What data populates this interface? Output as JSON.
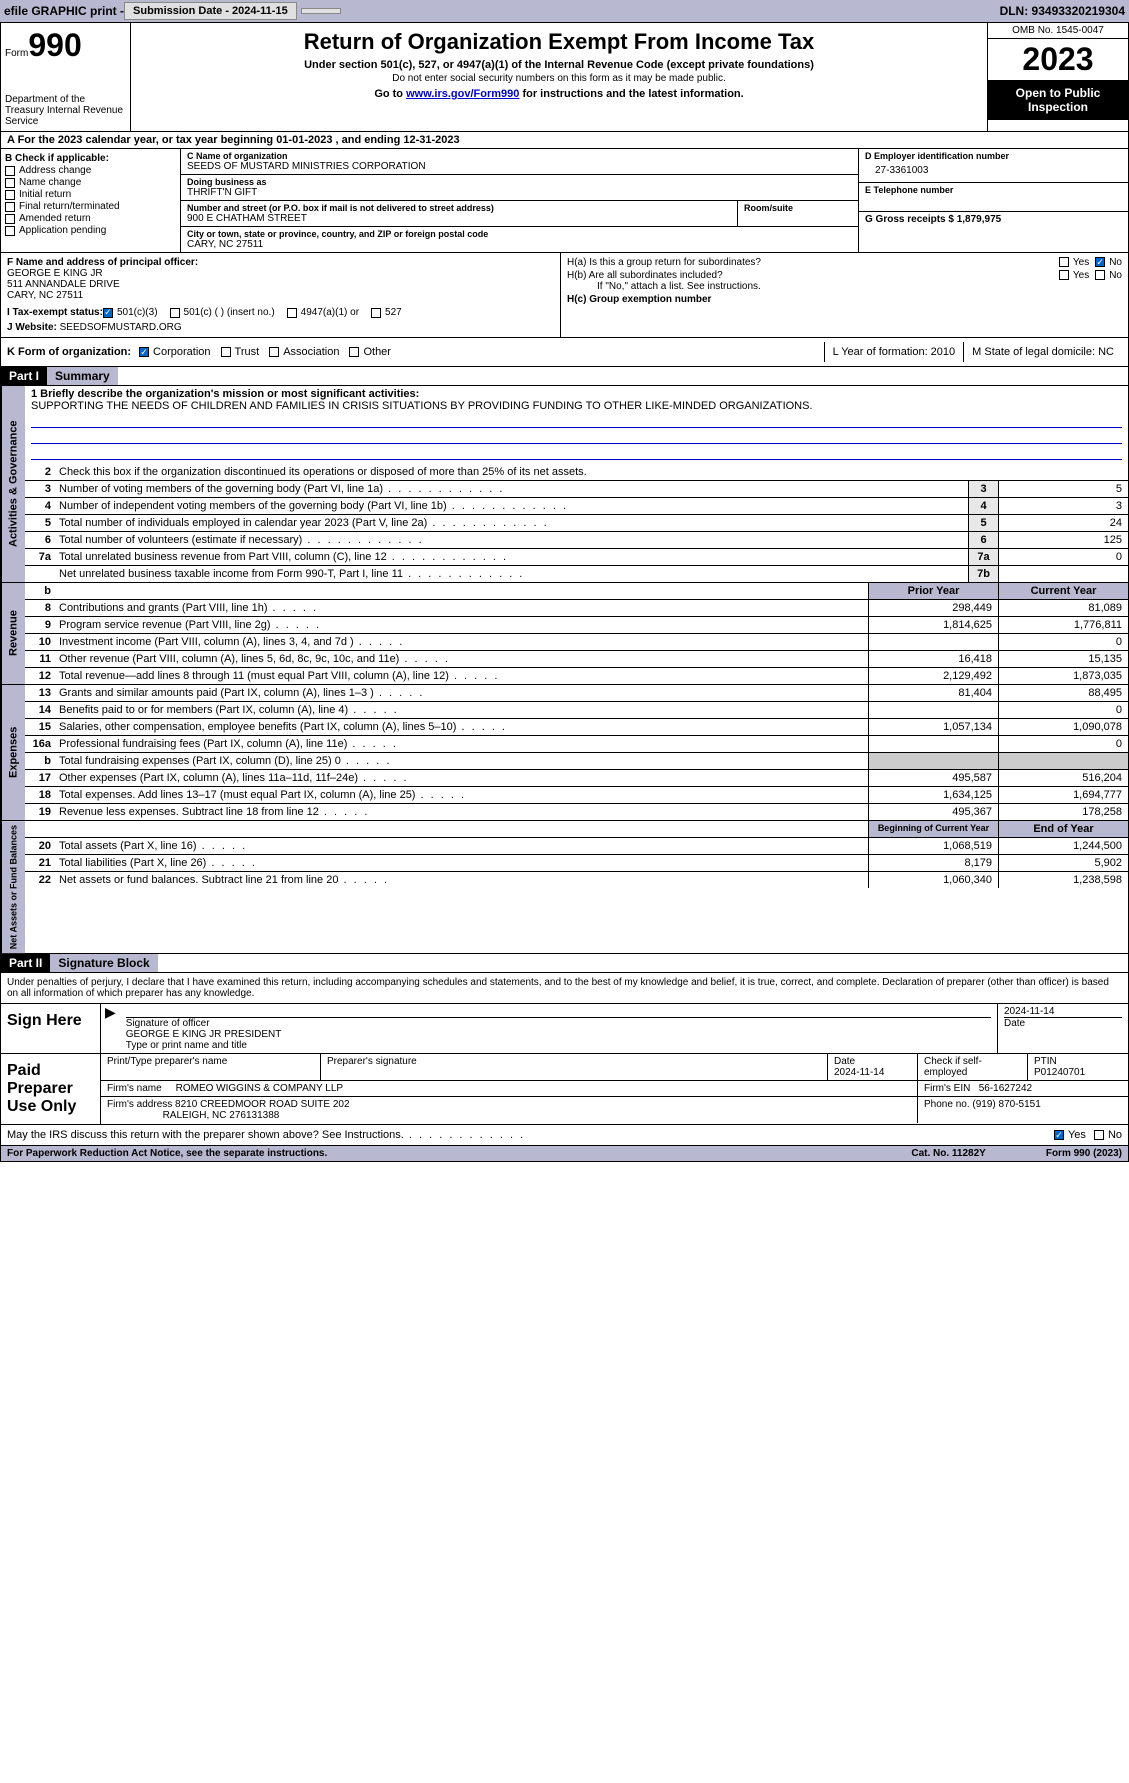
{
  "topbar": {
    "efile": "efile GRAPHIC print -",
    "sub_label": "Submission Date - 2024-11-15",
    "dln": "DLN: 93493320219304"
  },
  "header": {
    "form_word": "Form",
    "form_num": "990",
    "dept": "Department of the Treasury Internal Revenue Service",
    "title": "Return of Organization Exempt From Income Tax",
    "sub": "Under section 501(c), 527, or 4947(a)(1) of the Internal Revenue Code (except private foundations)",
    "note": "Do not enter social security numbers on this form as it may be made public.",
    "goto_pre": "Go to ",
    "goto_link": "www.irs.gov/Form990",
    "goto_post": " for instructions and the latest information.",
    "omb": "OMB No. 1545-0047",
    "year": "2023",
    "inspect": "Open to Public Inspection"
  },
  "period": {
    "a": "A For the 2023 calendar year, or tax year beginning 01-01-2023   , and ending 12-31-2023"
  },
  "box_b": {
    "hdr": "B Check if applicable:",
    "opts": [
      "Address change",
      "Name change",
      "Initial return",
      "Final return/terminated",
      "Amended return",
      "Application pending"
    ]
  },
  "box_c": {
    "name_lbl": "C Name of organization",
    "name": "SEEDS OF MUSTARD MINISTRIES CORPORATION",
    "dba_lbl": "Doing business as",
    "dba": "THRIFT'N GIFT",
    "addr_lbl": "Number and street (or P.O. box if mail is not delivered to street address)",
    "addr": "900 E CHATHAM STREET",
    "room_lbl": "Room/suite",
    "city_lbl": "City or town, state or province, country, and ZIP or foreign postal code",
    "city": "CARY, NC  27511"
  },
  "box_d": {
    "lbl": "D Employer identification number",
    "val": "27-3361003"
  },
  "box_e": {
    "lbl": "E Telephone number",
    "val": ""
  },
  "box_g": {
    "lbl": "G Gross receipts $ 1,879,975"
  },
  "box_f": {
    "lbl": "F  Name and address of principal officer:",
    "name": "GEORGE E KING JR",
    "addr1": "511 ANNANDALE DRIVE",
    "addr2": "CARY, NC  27511"
  },
  "box_h": {
    "a": "H(a)  Is this a group return for subordinates?",
    "b": "H(b)  Are all subordinates included?",
    "note": "If \"No,\" attach a list. See instructions.",
    "c": "H(c)  Group exemption number",
    "yes": "Yes",
    "no": "No"
  },
  "row_i": {
    "lbl": "I    Tax-exempt status:",
    "o1": "501(c)(3)",
    "o2": "501(c) (  ) (insert no.)",
    "o3": "4947(a)(1) or",
    "o4": "527"
  },
  "row_j": {
    "lbl": "J    Website:",
    "val": "SEEDSOFMUSTARD.ORG"
  },
  "row_k": {
    "lbl": "K Form of organization:",
    "o1": "Corporation",
    "o2": "Trust",
    "o3": "Association",
    "o4": "Other"
  },
  "row_l": {
    "lbl": "L Year of formation: 2010"
  },
  "row_m": {
    "lbl": "M State of legal domicile: NC"
  },
  "part1": {
    "num": "Part I",
    "title": "Summary"
  },
  "mission": {
    "lbl": "1   Briefly describe the organization's mission or most significant activities:",
    "txt": "SUPPORTING THE NEEDS OF CHILDREN AND FAMILIES IN CRISIS SITUATIONS BY PROVIDING FUNDING TO OTHER LIKE-MINDED ORGANIZATIONS."
  },
  "line2": "Check this box      if the organization discontinued its operations or disposed of more than 25% of its net assets.",
  "gov_lines": [
    {
      "n": "3",
      "t": "Number of voting members of the governing body (Part VI, line 1a)",
      "b": "3",
      "v": "5"
    },
    {
      "n": "4",
      "t": "Number of independent voting members of the governing body (Part VI, line 1b)",
      "b": "4",
      "v": "3"
    },
    {
      "n": "5",
      "t": "Total number of individuals employed in calendar year 2023 (Part V, line 2a)",
      "b": "5",
      "v": "24"
    },
    {
      "n": "6",
      "t": "Total number of volunteers (estimate if necessary)",
      "b": "6",
      "v": "125"
    },
    {
      "n": "7a",
      "t": "Total unrelated business revenue from Part VIII, column (C), line 12",
      "b": "7a",
      "v": "0"
    },
    {
      "n": "",
      "t": "Net unrelated business taxable income from Form 990-T, Part I, line 11",
      "b": "7b",
      "v": ""
    }
  ],
  "col_hdrs": {
    "b": "b",
    "prior": "Prior Year",
    "current": "Current Year"
  },
  "revenue_lines": [
    {
      "n": "8",
      "t": "Contributions and grants (Part VIII, line 1h)",
      "p": "298,449",
      "c": "81,089"
    },
    {
      "n": "9",
      "t": "Program service revenue (Part VIII, line 2g)",
      "p": "1,814,625",
      "c": "1,776,811"
    },
    {
      "n": "10",
      "t": "Investment income (Part VIII, column (A), lines 3, 4, and 7d )",
      "p": "",
      "c": "0"
    },
    {
      "n": "11",
      "t": "Other revenue (Part VIII, column (A), lines 5, 6d, 8c, 9c, 10c, and 11e)",
      "p": "16,418",
      "c": "15,135"
    },
    {
      "n": "12",
      "t": "Total revenue—add lines 8 through 11 (must equal Part VIII, column (A), line 12)",
      "p": "2,129,492",
      "c": "1,873,035"
    }
  ],
  "expense_lines": [
    {
      "n": "13",
      "t": "Grants and similar amounts paid (Part IX, column (A), lines 1–3 )",
      "p": "81,404",
      "c": "88,495"
    },
    {
      "n": "14",
      "t": "Benefits paid to or for members (Part IX, column (A), line 4)",
      "p": "",
      "c": "0"
    },
    {
      "n": "15",
      "t": "Salaries, other compensation, employee benefits (Part IX, column (A), lines 5–10)",
      "p": "1,057,134",
      "c": "1,090,078"
    },
    {
      "n": "16a",
      "t": "Professional fundraising fees (Part IX, column (A), line 11e)",
      "p": "",
      "c": "0"
    },
    {
      "n": "b",
      "t": "Total fundraising expenses (Part IX, column (D), line 25) 0",
      "p": "GRAY",
      "c": "GRAY"
    },
    {
      "n": "17",
      "t": "Other expenses (Part IX, column (A), lines 11a–11d, 11f–24e)",
      "p": "495,587",
      "c": "516,204"
    },
    {
      "n": "18",
      "t": "Total expenses. Add lines 13–17 (must equal Part IX, column (A), line 25)",
      "p": "1,634,125",
      "c": "1,694,777"
    },
    {
      "n": "19",
      "t": "Revenue less expenses. Subtract line 18 from line 12",
      "p": "495,367",
      "c": "178,258"
    }
  ],
  "net_hdrs": {
    "begin": "Beginning of Current Year",
    "end": "End of Year"
  },
  "net_lines": [
    {
      "n": "20",
      "t": "Total assets (Part X, line 16)",
      "p": "1,068,519",
      "c": "1,244,500"
    },
    {
      "n": "21",
      "t": "Total liabilities (Part X, line 26)",
      "p": "8,179",
      "c": "5,902"
    },
    {
      "n": "22",
      "t": "Net assets or fund balances. Subtract line 21 from line 20",
      "p": "1,060,340",
      "c": "1,238,598"
    }
  ],
  "vtabs": {
    "gov": "Activities & Governance",
    "rev": "Revenue",
    "exp": "Expenses",
    "net": "Net Assets or Fund Balances"
  },
  "part2": {
    "num": "Part II",
    "title": "Signature Block"
  },
  "sig_intro": "Under penalties of perjury, I declare that I have examined this return, including accompanying schedules and statements, and to the best of my knowledge and belief, it is true, correct, and complete. Declaration of preparer (other than officer) is based on all information of which preparer has any knowledge.",
  "sign_here": {
    "lbl": "Sign Here",
    "sig_lbl": "Signature of officer",
    "name": "GEORGE E KING JR  PRESIDENT",
    "type_lbl": "Type or print name and title",
    "date_lbl": "Date",
    "date": "2024-11-14"
  },
  "paid": {
    "lbl": "Paid Preparer Use Only",
    "name_lbl": "Print/Type preparer's name",
    "sig_lbl": "Preparer's signature",
    "date_lbl": "Date",
    "date": "2024-11-14",
    "check_lbl": "Check       if self-employed",
    "ptin_lbl": "PTIN",
    "ptin": "P01240701",
    "firm_name_lbl": "Firm's name",
    "firm_name": "ROMEO WIGGINS & COMPANY LLP",
    "firm_ein_lbl": "Firm's EIN",
    "firm_ein": "56-1627242",
    "firm_addr_lbl": "Firm's address",
    "firm_addr1": "8210 CREEDMOOR ROAD SUITE 202",
    "firm_addr2": "RALEIGH, NC  276131388",
    "phone_lbl": "Phone no.",
    "phone": "(919) 870-5151"
  },
  "discuss": {
    "txt": "May the IRS discuss this return with the preparer shown above? See Instructions.",
    "yes": "Yes",
    "no": "No"
  },
  "footer": {
    "left": "For Paperwork Reduction Act Notice, see the separate instructions.",
    "mid": "Cat. No. 11282Y",
    "right": "Form 990 (2023)"
  },
  "colors": {
    "hdr_bg": "#b8b8d0",
    "black": "#000000",
    "link": "#0000cc",
    "check_blue": "#0066cc"
  }
}
